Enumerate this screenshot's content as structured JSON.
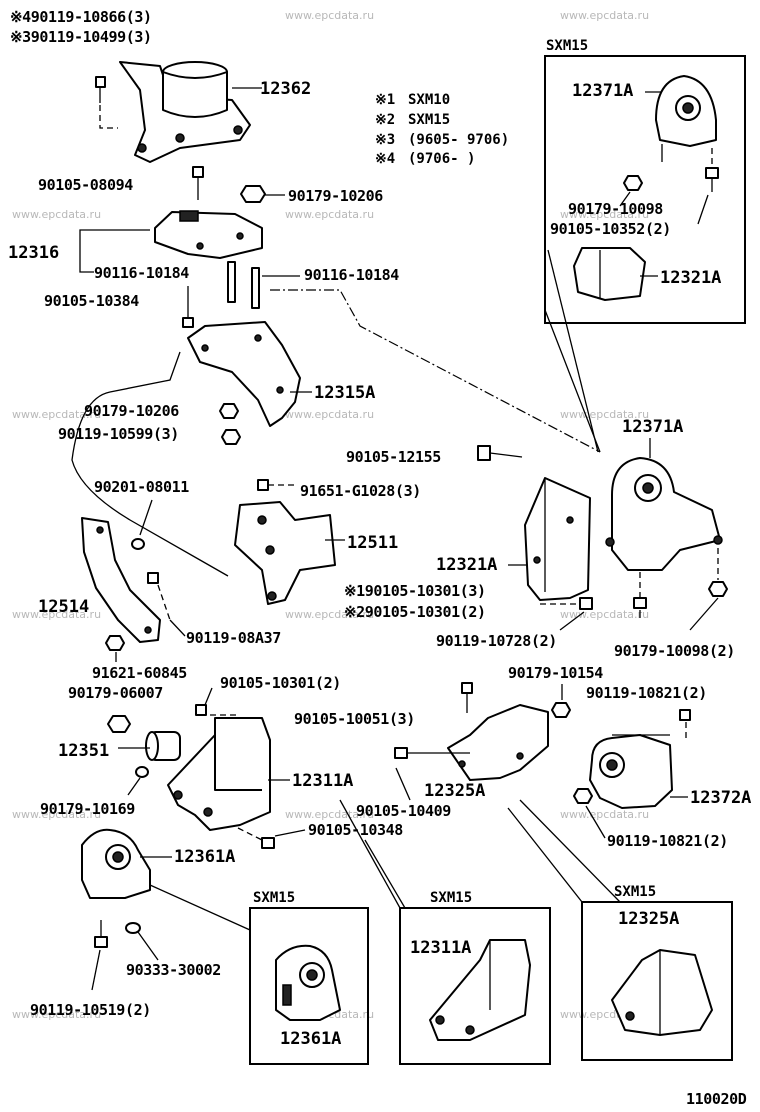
{
  "diagram_id": "110020D",
  "watermark": "www.epcdata.ru",
  "notes": [
    {
      "mark": "※1",
      "text": "SXM10"
    },
    {
      "mark": "※2",
      "text": "SXM15"
    },
    {
      "mark": "※3",
      "text": "(9605- 9706)"
    },
    {
      "mark": "※4",
      "text": "(9706-        )"
    }
  ],
  "part_numbers": {
    "p490119_10866": "※490119-10866(3)",
    "p390119_10499": "※390119-10499(3)",
    "p12362": "12362",
    "p90105_08094": "90105-08094",
    "p90179_10206_a": "90179-10206",
    "p12316": "12316",
    "p90116_10184_a": "90116-10184",
    "p90116_10184_b": "90116-10184",
    "p90105_10384": "90105-10384",
    "p12315A": "12315A",
    "p90179_10206_b": "90179-10206",
    "p90119_10599": "90119-10599(3)",
    "p90201_08011": "90201-08011",
    "p91651_G1028": "91651-G1028(3)",
    "p12511": "12511",
    "p12514": "12514",
    "p90119_08A37": "90119-08A37",
    "p91621_60845": "91621-60845",
    "p90179_06007": "90179-06007",
    "p90105_10301_a": "90105-10301(2)",
    "p12351": "12351",
    "p12311A": "12311A",
    "p90179_10169": "90179-10169",
    "p90105_10348": "90105-10348",
    "p12361A": "12361A",
    "p90333_30002": "90333-30002",
    "p90119_10519": "90119-10519(2)",
    "p90105_12155": "90105-12155",
    "p12321A": "12321A",
    "p90105_10301_n1": "※190105-10301(3)",
    "p90105_10301_n2": "※290105-10301(2)",
    "p90119_10728": "90119-10728(2)",
    "p12371A": "12371A",
    "p90179_10098": "90179-10098(2)",
    "p90179_10154": "90179-10154",
    "p90119_10821_a": "90119-10821(2)",
    "p90105_10051": "90105-10051(3)",
    "p12325A": "12325A",
    "p90105_10409": "90105-10409",
    "p12372A": "12372A",
    "p90119_10821_b": "90119-10821(2)"
  },
  "insets": {
    "tr": {
      "title": "SXM15",
      "p12371A": "12371A",
      "p90179_10098": "90179-10098",
      "p90105_10352": "90105-10352(2)",
      "p12321A": "12321A"
    },
    "b1": {
      "title": "SXM15",
      "p12361A": "12361A"
    },
    "b2": {
      "title": "SXM15",
      "p12311A": "12311A"
    },
    "b3": {
      "title": "SXM15",
      "p12325A": "12325A"
    }
  }
}
